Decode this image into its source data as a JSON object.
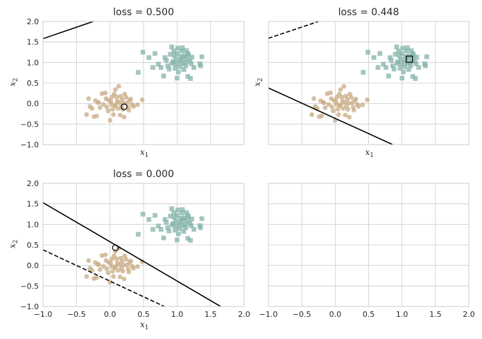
{
  "figure": {
    "colors": {
      "class_a": "#c8ab84",
      "class_b": "#84b3a9",
      "line": "#000000",
      "grid": "#cccccc",
      "spine": "#cccccc"
    }
  },
  "chart_data": [
    {
      "type": "scatter",
      "title": "loss = 0.500",
      "xlabel": "x_1",
      "ylabel": "x_2",
      "xlim": [
        -1.0,
        2.0
      ],
      "ylim": [
        -1.0,
        2.0
      ],
      "xticks": [
        "-1.0",
        "-0.5",
        "0.0",
        "0.5",
        "1.0",
        "1.5",
        "2.0"
      ],
      "yticks": [
        "-1.0",
        "-0.5",
        "0.0",
        "0.5",
        "1.0",
        "1.5",
        "2.0"
      ],
      "show_xtick_labels": false,
      "show_yticks_labels": true,
      "grid": true,
      "lines": [
        {
          "style": "solid",
          "points": [
            [
              -1.0,
              1.58
            ],
            [
              -0.25,
              2.0
            ]
          ]
        }
      ],
      "highlight": {
        "shape": "circle",
        "point": [
          0.21,
          -0.08
        ]
      }
    },
    {
      "type": "scatter",
      "title": "loss = 0.448",
      "xlabel": "x_1",
      "ylabel": "x_2",
      "xlim": [
        -1.0,
        2.0
      ],
      "ylim": [
        -1.0,
        2.0
      ],
      "xticks": [
        "-1.0",
        "-0.5",
        "0.0",
        "0.5",
        "1.0",
        "1.5",
        "2.0"
      ],
      "yticks": [
        "-1.0",
        "-0.5",
        "0.0",
        "0.5",
        "1.0",
        "1.5",
        "2.0"
      ],
      "show_xtick_labels": false,
      "show_yticks_labels": false,
      "grid": true,
      "lines": [
        {
          "style": "solid",
          "points": [
            [
              -1.0,
              0.38
            ],
            [
              0.86,
              -1.0
            ]
          ]
        },
        {
          "style": "dashed",
          "points": [
            [
              -1.0,
              1.59
            ],
            [
              -0.25,
              2.0
            ]
          ]
        }
      ],
      "highlight": {
        "shape": "square",
        "point": [
          1.11,
          1.08
        ]
      }
    },
    {
      "type": "scatter",
      "title": "loss = 0.000",
      "xlabel": "x_1",
      "ylabel": "x_2",
      "xlim": [
        -1.0,
        2.0
      ],
      "ylim": [
        -1.0,
        2.0
      ],
      "xticks": [
        "-1.0",
        "-0.5",
        "0.0",
        "0.5",
        "1.0",
        "1.5",
        "2.0"
      ],
      "yticks": [
        "-1.0",
        "-0.5",
        "0.0",
        "0.5",
        "1.0",
        "1.5",
        "2.0"
      ],
      "show_xtick_labels": true,
      "show_yticks_labels": true,
      "grid": true,
      "lines": [
        {
          "style": "solid",
          "points": [
            [
              -1.0,
              1.53
            ],
            [
              1.65,
              -1.0
            ]
          ]
        },
        {
          "style": "dashed",
          "points": [
            [
              -1.0,
              0.38
            ],
            [
              0.81,
              -1.0
            ]
          ]
        }
      ],
      "highlight": {
        "shape": "circle",
        "point": [
          0.08,
          0.43
        ]
      }
    },
    {
      "type": "scatter",
      "title": "",
      "xlabel": "",
      "ylabel": "",
      "xlim": [
        -1.0,
        2.0
      ],
      "ylim": [
        -1.0,
        2.0
      ],
      "xticks": [
        "-1.0",
        "-0.5",
        "0.0",
        "0.5",
        "1.0",
        "1.5",
        "2.0"
      ],
      "yticks": [
        "-1.0",
        "-0.5",
        "0.0",
        "0.5",
        "1.0",
        "1.5",
        "2.0"
      ],
      "show_xtick_labels": true,
      "show_yticks_labels": false,
      "grid": true,
      "empty": true,
      "lines": []
    }
  ],
  "scatter_points": {
    "class_a": [
      [
        -0.35,
        -0.27
      ],
      [
        -0.32,
        0.12
      ],
      [
        -0.3,
        -0.07
      ],
      [
        -0.27,
        -0.12
      ],
      [
        -0.24,
        -0.32
      ],
      [
        -0.22,
        0.07
      ],
      [
        -0.2,
        -0.3
      ],
      [
        -0.18,
        0.03
      ],
      [
        -0.17,
        0.02
      ],
      [
        -0.15,
        -0.1
      ],
      [
        -0.12,
        0.24
      ],
      [
        -0.1,
        -0.02
      ],
      [
        -0.07,
        0.26
      ],
      [
        -0.05,
        -0.08
      ],
      [
        -0.03,
        -0.18
      ],
      [
        -0.02,
        0.08
      ],
      [
        0.0,
        -0.41
      ],
      [
        0.01,
        0.05
      ],
      [
        0.02,
        -0.02
      ],
      [
        0.03,
        0.16
      ],
      [
        0.05,
        -0.27
      ],
      [
        0.06,
        0.23
      ],
      [
        0.07,
        -0.06
      ],
      [
        0.08,
        0.34
      ],
      [
        0.08,
        -0.03
      ],
      [
        0.1,
        0.16
      ],
      [
        0.11,
        0.06
      ],
      [
        0.12,
        -0.12
      ],
      [
        0.13,
        0.42
      ],
      [
        0.14,
        0.02
      ],
      [
        0.15,
        -0.28
      ],
      [
        0.16,
        0.18
      ],
      [
        0.17,
        -0.07
      ],
      [
        0.18,
        0.1
      ],
      [
        0.19,
        -0.14
      ],
      [
        0.2,
        0.01
      ],
      [
        0.21,
        -0.33
      ],
      [
        0.22,
        0.23
      ],
      [
        0.24,
        0.15
      ],
      [
        0.25,
        0.01
      ],
      [
        0.27,
        -0.09
      ],
      [
        0.28,
        -0.16
      ],
      [
        0.29,
        0.07
      ],
      [
        0.31,
        0.11
      ],
      [
        0.33,
        -0.02
      ],
      [
        0.35,
        -0.07
      ],
      [
        0.41,
        -0.03
      ],
      [
        0.48,
        0.09
      ],
      [
        -0.06,
        0.12
      ],
      [
        0.04,
        -0.14
      ]
    ],
    "class_b": [
      [
        0.42,
        0.76
      ],
      [
        0.49,
        1.25
      ],
      [
        0.58,
        1.12
      ],
      [
        0.64,
        0.88
      ],
      [
        0.67,
        1.22
      ],
      [
        0.72,
        0.96
      ],
      [
        0.76,
        0.88
      ],
      [
        0.8,
        0.67
      ],
      [
        0.82,
        1.12
      ],
      [
        0.84,
        1.05
      ],
      [
        0.86,
        0.92
      ],
      [
        0.88,
        0.84
      ],
      [
        0.9,
        1.2
      ],
      [
        0.92,
        1.38
      ],
      [
        0.93,
        0.98
      ],
      [
        0.95,
        1.28
      ],
      [
        0.96,
        1.17
      ],
      [
        0.97,
        0.86
      ],
      [
        0.98,
        1.08
      ],
      [
        0.99,
        0.96
      ],
      [
        1.0,
        1.22
      ],
      [
        1.01,
        1.35
      ],
      [
        1.02,
        0.77
      ],
      [
        1.03,
        1.02
      ],
      [
        1.04,
        0.9
      ],
      [
        1.05,
        1.15
      ],
      [
        1.06,
        1.07
      ],
      [
        1.07,
        1.28
      ],
      [
        1.08,
        0.97
      ],
      [
        1.09,
        1.12
      ],
      [
        1.1,
        0.83
      ],
      [
        1.11,
        1.16
      ],
      [
        1.12,
        1.0
      ],
      [
        1.13,
        0.92
      ],
      [
        1.14,
        1.29
      ],
      [
        1.15,
        1.08
      ],
      [
        1.16,
        0.66
      ],
      [
        1.17,
        1.18
      ],
      [
        1.19,
        1.03
      ],
      [
        1.2,
        0.61
      ],
      [
        1.21,
        0.97
      ],
      [
        1.22,
        1.13
      ],
      [
        1.25,
        0.88
      ],
      [
        1.35,
        0.92
      ],
      [
        1.37,
        1.14
      ],
      [
        1.34,
        0.97
      ],
      [
        1.0,
        0.62
      ],
      [
        1.08,
        1.36
      ],
      [
        0.94,
        1.02
      ],
      [
        1.16,
        1.22
      ]
    ]
  }
}
